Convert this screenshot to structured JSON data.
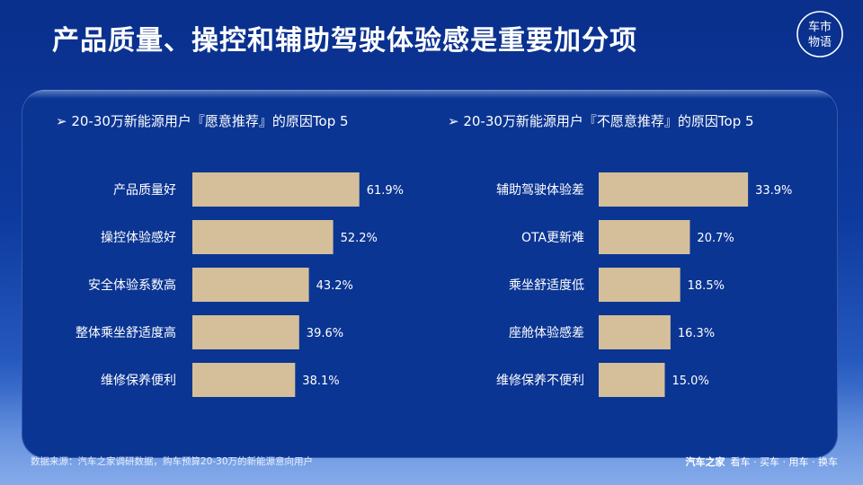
{
  "title": "产品质量、操控和辅助驾驶体验感是重要加分项",
  "logo_text": "车市物语",
  "colors": {
    "bar": "#d4bf9a",
    "panel": "#0b3593"
  },
  "chart_data": [
    {
      "type": "bar",
      "orientation": "horizontal",
      "title": "➢  20-30万新能源用户『愿意推荐』的原因Top 5",
      "categories": [
        "产品质量好",
        "操控体验感好",
        "安全体验系数高",
        "整体乘坐舒适度高",
        "维修保养便利"
      ],
      "values": [
        61.9,
        52.2,
        43.2,
        39.6,
        38.1
      ],
      "labels": [
        "61.9%",
        "52.2%",
        "43.2%",
        "39.6%",
        "38.1%"
      ],
      "unit": "%",
      "xlim": [
        0,
        100
      ],
      "grid": false
    },
    {
      "type": "bar",
      "orientation": "horizontal",
      "title": "➢  20-30万新能源用户『不愿意推荐』的原因Top 5",
      "categories": [
        "辅助驾驶体验差",
        "OTA更新难",
        "乘坐舒适度低",
        "座舱体验感差",
        "维修保养不便利"
      ],
      "values": [
        33.9,
        20.7,
        18.5,
        16.3,
        15.0
      ],
      "labels": [
        "33.9%",
        "20.7%",
        "18.5%",
        "16.3%",
        "15.0%"
      ],
      "unit": "%",
      "xlim": [
        0,
        40
      ],
      "grid": false
    }
  ],
  "footer": {
    "source": "数据来源：汽车之家调研数据，购车预算20-30万的新能源意向用户",
    "brand_name": "汽车之家",
    "brand_slogan": "看车 · 买车 · 用车 · 换车"
  }
}
